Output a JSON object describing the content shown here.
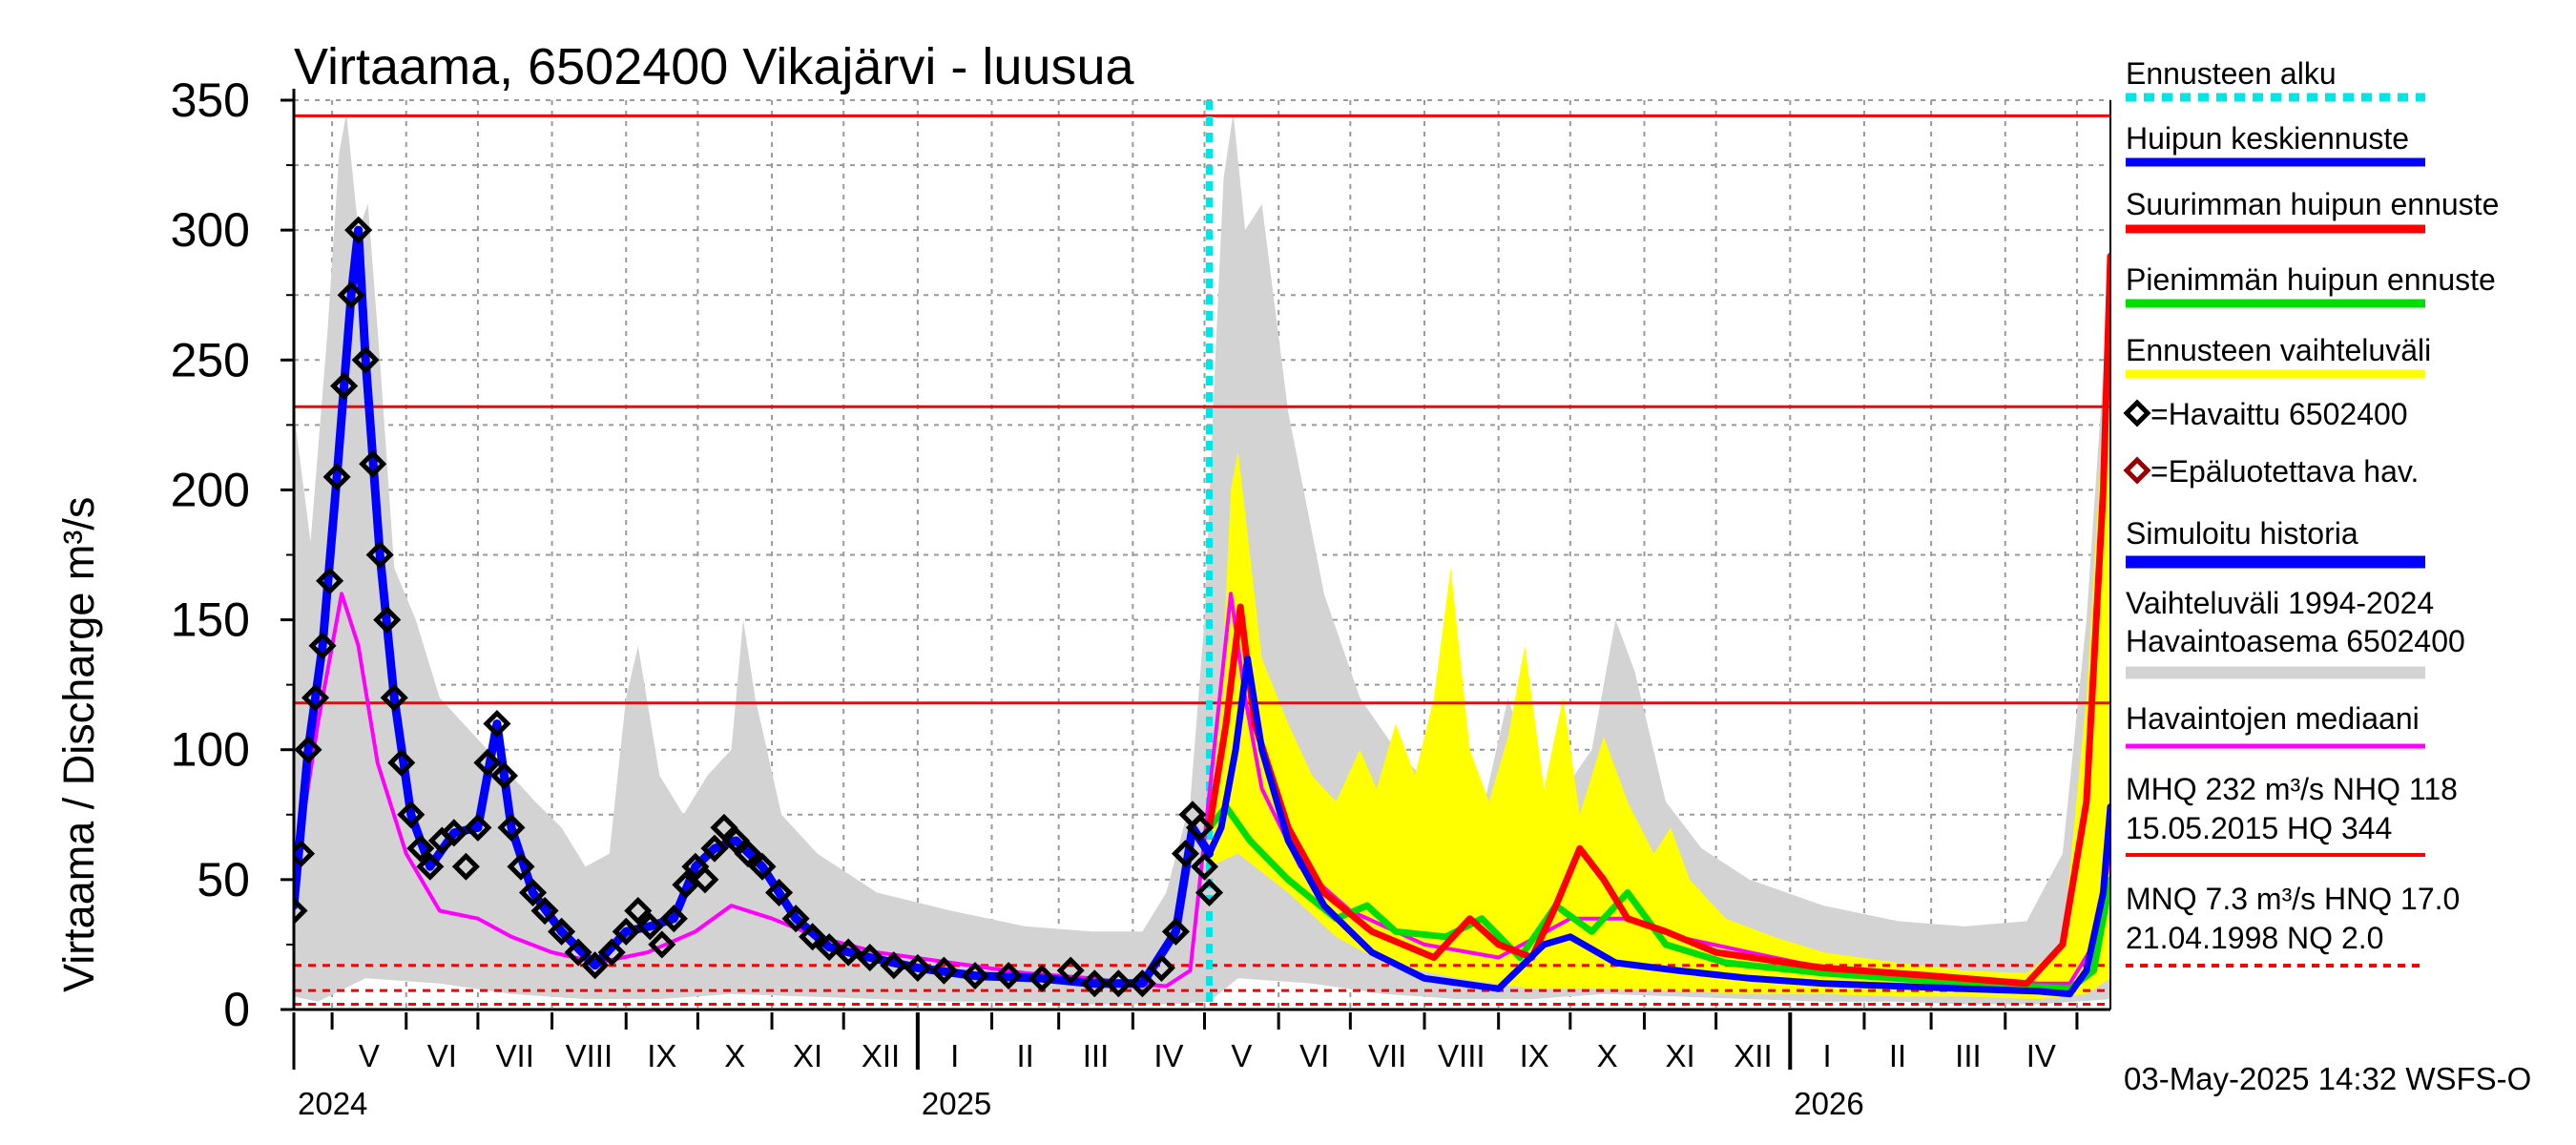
{
  "chart_data": {
    "type": "line",
    "title": "Virtaama, 6502400 Vikajärvi - luusua",
    "ylabel": "Virtaama / Discharge    m³/s",
    "ylim": [
      0,
      350
    ],
    "yticks": [
      0,
      50,
      100,
      150,
      200,
      250,
      300,
      350
    ],
    "x_range": [
      "2024-04-15",
      "2026-05-15"
    ],
    "grid": true,
    "months": [
      "V",
      "VI",
      "VII",
      "VIII",
      "IX",
      "X",
      "XI",
      "XII",
      "I",
      "II",
      "III",
      "IV",
      "V",
      "VI",
      "VII",
      "VIII",
      "IX",
      "X",
      "XI",
      "XII",
      "I",
      "II",
      "III",
      "IV"
    ],
    "years": [
      "2024",
      "2025",
      "2026"
    ],
    "forecast_start": "2025-05-03",
    "reference_lines": [
      {
        "name": "HQ",
        "value": 344,
        "style": "solid",
        "color": "#ff0000"
      },
      {
        "name": "MHQ",
        "value": 232,
        "style": "solid",
        "color": "#ff0000"
      },
      {
        "name": "NHQ",
        "value": 118,
        "style": "solid",
        "color": "#ff0000"
      },
      {
        "name": "HNQ",
        "value": 17.0,
        "style": "dashed",
        "color": "#ff0000"
      },
      {
        "name": "MNQ",
        "value": 7.3,
        "style": "dashed",
        "color": "#ff0000"
      },
      {
        "name": "NQ",
        "value": 2.0,
        "style": "dashed",
        "color": "#ff0000"
      }
    ],
    "series": [
      {
        "name": "Havaittu 6502400",
        "type": "markers",
        "color": "#000000",
        "x": [
          "2024-04-15",
          "2024-04-18",
          "2024-04-21",
          "2024-04-24",
          "2024-04-27",
          "2024-04-30",
          "2024-05-03",
          "2024-05-06",
          "2024-05-09",
          "2024-05-12",
          "2024-05-15",
          "2024-05-18",
          "2024-05-21",
          "2024-05-24",
          "2024-05-27",
          "2024-05-30",
          "2024-06-03",
          "2024-06-07",
          "2024-06-11",
          "2024-06-16",
          "2024-06-21",
          "2024-06-26",
          "2024-07-01",
          "2024-07-05",
          "2024-07-09",
          "2024-07-12",
          "2024-07-15",
          "2024-07-19",
          "2024-07-24",
          "2024-07-29",
          "2024-08-05",
          "2024-08-12",
          "2024-08-19",
          "2024-08-26",
          "2024-09-01",
          "2024-09-06",
          "2024-09-11",
          "2024-09-16",
          "2024-09-21",
          "2024-09-26",
          "2024-09-30",
          "2024-10-04",
          "2024-10-08",
          "2024-10-12",
          "2024-10-17",
          "2024-10-22",
          "2024-10-28",
          "2024-11-04",
          "2024-11-11",
          "2024-11-18",
          "2024-11-25",
          "2024-12-03",
          "2024-12-12",
          "2024-12-22",
          "2025-01-01",
          "2025-01-12",
          "2025-01-25",
          "2025-02-08",
          "2025-02-22",
          "2025-03-06",
          "2025-03-16",
          "2025-03-26",
          "2025-04-05",
          "2025-04-13",
          "2025-04-19",
          "2025-04-23",
          "2025-04-26",
          "2025-04-29",
          "2025-05-01",
          "2025-05-03"
        ],
        "values": [
          38,
          60,
          100,
          120,
          140,
          165,
          205,
          240,
          275,
          300,
          250,
          210,
          175,
          150,
          120,
          95,
          75,
          62,
          55,
          65,
          68,
          55,
          70,
          95,
          110,
          90,
          70,
          55,
          45,
          38,
          30,
          22,
          17,
          22,
          30,
          38,
          32,
          25,
          35,
          48,
          55,
          50,
          62,
          70,
          65,
          60,
          55,
          45,
          35,
          28,
          24,
          22,
          20,
          17,
          16,
          15,
          13,
          13,
          12,
          15,
          10,
          10,
          10,
          16,
          30,
          60,
          75,
          70,
          55,
          45
        ]
      },
      {
        "name": "Simuloitu historia",
        "type": "line",
        "color": "#0000ff",
        "x": [
          "2024-04-15",
          "2024-04-21",
          "2024-04-27",
          "2024-05-03",
          "2024-05-09",
          "2024-05-12",
          "2024-05-15",
          "2024-05-21",
          "2024-05-27",
          "2024-06-03",
          "2024-06-11",
          "2024-06-21",
          "2024-07-01",
          "2024-07-09",
          "2024-07-15",
          "2024-07-24",
          "2024-08-05",
          "2024-08-19",
          "2024-09-01",
          "2024-09-11",
          "2024-09-21",
          "2024-09-30",
          "2024-10-08",
          "2024-10-17",
          "2024-10-28",
          "2024-11-11",
          "2024-11-25",
          "2024-12-12",
          "2025-01-01",
          "2025-01-25",
          "2025-02-22",
          "2025-03-16",
          "2025-04-05",
          "2025-04-19",
          "2025-04-26",
          "2025-05-03"
        ],
        "values": [
          40,
          100,
          140,
          205,
          275,
          300,
          250,
          175,
          120,
          75,
          55,
          68,
          70,
          110,
          70,
          45,
          30,
          17,
          30,
          32,
          35,
          55,
          62,
          65,
          55,
          35,
          24,
          20,
          16,
          13,
          12,
          10,
          10,
          30,
          70,
          60
        ]
      },
      {
        "name": "Huipun keskiennuste",
        "type": "line",
        "color": "#0000ff",
        "x": [
          "2025-05-03",
          "2025-05-08",
          "2025-05-14",
          "2025-05-19",
          "2025-05-25",
          "2025-06-05",
          "2025-06-20",
          "2025-07-10",
          "2025-08-01",
          "2025-09-01",
          "2025-09-20",
          "2025-10-01",
          "2025-10-20",
          "2025-11-15",
          "2025-12-15",
          "2026-01-15",
          "2026-02-15",
          "2026-03-15",
          "2026-04-15",
          "2026-04-28",
          "2026-05-05",
          "2026-05-12",
          "2026-05-15"
        ],
        "values": [
          60,
          70,
          100,
          135,
          100,
          65,
          40,
          22,
          12,
          8,
          25,
          28,
          18,
          15,
          12,
          10,
          9,
          8,
          7,
          6,
          15,
          45,
          78
        ]
      },
      {
        "name": "Suurimman huipun ennuste",
        "type": "line",
        "color": "#ff0000",
        "x": [
          "2025-05-03",
          "2025-05-10",
          "2025-05-16",
          "2025-05-22",
          "2025-06-05",
          "2025-06-20",
          "2025-07-10",
          "2025-08-05",
          "2025-08-20",
          "2025-09-01",
          "2025-09-15",
          "2025-09-25",
          "2025-10-05",
          "2025-10-15",
          "2025-10-25",
          "2025-11-10",
          "2025-12-01",
          "2026-01-15",
          "2026-03-01",
          "2026-04-10",
          "2026-04-25",
          "2026-05-05",
          "2026-05-12",
          "2026-05-15"
        ],
        "values": [
          70,
          110,
          155,
          110,
          70,
          45,
          30,
          20,
          35,
          25,
          20,
          40,
          62,
          50,
          35,
          30,
          22,
          16,
          13,
          10,
          25,
          80,
          200,
          290
        ]
      },
      {
        "name": "Pienimmän huipun ennuste",
        "type": "line",
        "color": "#00dd00",
        "x": [
          "2025-05-03",
          "2025-05-10",
          "2025-05-20",
          "2025-06-05",
          "2025-06-25",
          "2025-07-08",
          "2025-07-20",
          "2025-08-10",
          "2025-08-25",
          "2025-09-10",
          "2025-09-25",
          "2025-10-10",
          "2025-10-25",
          "2025-11-10",
          "2025-12-05",
          "2026-01-15",
          "2026-03-01",
          "2026-04-10",
          "2026-04-28",
          "2026-05-08",
          "2026-05-15"
        ],
        "values": [
          70,
          78,
          65,
          50,
          35,
          40,
          30,
          28,
          35,
          20,
          40,
          30,
          45,
          25,
          18,
          14,
          11,
          9,
          8,
          15,
          50
        ]
      },
      {
        "name": "Havaintojen mediaani",
        "type": "line",
        "color": "#ff00ff",
        "x": [
          "2024-04-15",
          "2024-04-25",
          "2024-05-05",
          "2024-05-12",
          "2024-05-20",
          "2024-06-01",
          "2024-06-15",
          "2024-07-01",
          "2024-07-15",
          "2024-08-01",
          "2024-08-20",
          "2024-09-10",
          "2024-09-30",
          "2024-10-15",
          "2024-11-01",
          "2024-11-20",
          "2024-12-15",
          "2025-01-15",
          "2025-02-15",
          "2025-03-15",
          "2025-04-01",
          "2025-04-15",
          "2025-04-25",
          "2025-05-05",
          "2025-05-12",
          "2025-05-18",
          "2025-05-25",
          "2025-06-10",
          "2025-07-01",
          "2025-08-01",
          "2025-09-01",
          "2025-10-01",
          "2025-10-25",
          "2025-11-15",
          "2025-12-15",
          "2026-01-15",
          "2026-02-15",
          "2026-03-15",
          "2026-04-15",
          "2026-04-28",
          "2026-05-08",
          "2026-05-15"
        ],
        "values": [
          50,
          110,
          160,
          140,
          95,
          60,
          38,
          35,
          28,
          22,
          18,
          22,
          30,
          40,
          35,
          28,
          22,
          18,
          14,
          12,
          10,
          9,
          15,
          100,
          160,
          120,
          85,
          55,
          38,
          25,
          20,
          35,
          35,
          28,
          22,
          16,
          14,
          12,
          10,
          10,
          25,
          60
        ]
      }
    ],
    "bands": [
      {
        "name": "Ennusteen vaihteluväli",
        "color": "#ffff00"
      },
      {
        "name": "Vaihteluväli 1994-2024 Havaintoasema 6502400",
        "color": "#d3d3d3"
      }
    ]
  },
  "legend": {
    "items": [
      {
        "label": "Ennusteen alku",
        "color": "#00e5e5",
        "style": "dotted"
      },
      {
        "label": "Huipun keskiennuste",
        "color": "#0000ff",
        "style": "line"
      },
      {
        "label": "Suurimman huipun ennuste",
        "color": "#ff0000",
        "style": "line"
      },
      {
        "label": "Pienimmän huipun ennuste",
        "color": "#00dd00",
        "style": "line"
      },
      {
        "label": "Ennusteen vaihteluväli",
        "color": "#ffff00",
        "style": "line"
      },
      {
        "label": "=Havaittu 6502400",
        "color": "#000000",
        "style": "diamond"
      },
      {
        "label": "=Epäluotettava hav.",
        "color": "#990000",
        "style": "diamond"
      },
      {
        "label": "Simuloitu historia",
        "color": "#0000ff",
        "style": "line"
      },
      {
        "label": "Vaihteluväli 1994-2024",
        "label2": " Havaintoasema 6502400",
        "color": "#d3d3d3",
        "style": "line"
      },
      {
        "label": "Havaintojen mediaani",
        "color": "#ff00ff",
        "style": "line"
      }
    ],
    "stats_high": {
      "line1": "MHQ  232 m³/s NHQ  118",
      "line2": "15.05.2015 HQ  344"
    },
    "stats_low": {
      "line1": "MNQ  7.3 m³/s HNQ 17.0",
      "line2": "21.04.1998 NQ  2.0"
    }
  },
  "timestamp": "03-May-2025 14:32 WSFS-O"
}
